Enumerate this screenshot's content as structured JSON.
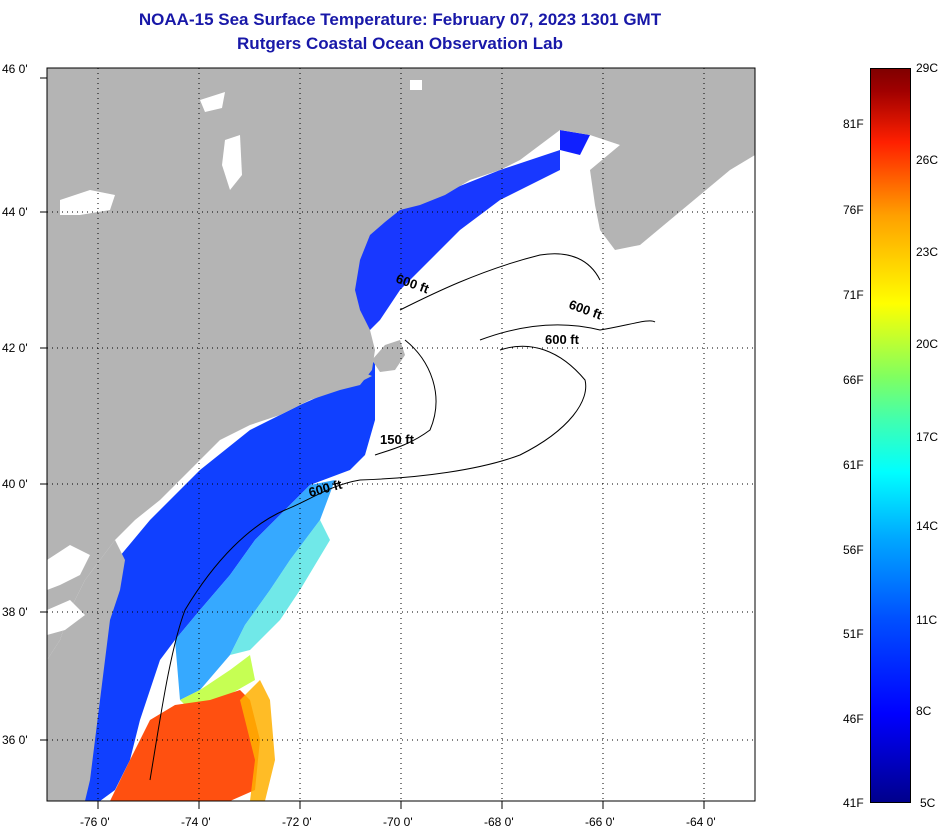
{
  "header": {
    "title": "NOAA-15 Sea Surface Temperature:  February 07, 2023 1301 GMT",
    "subtitle": "Rutgers Coastal Ocean Observation Lab"
  },
  "map": {
    "lat_labels": [
      "46 0'",
      "44 0'",
      "42 0'",
      "40 0'",
      "38 0'",
      "36 0'"
    ],
    "lon_labels": [
      "-76 0'",
      "-74 0'",
      "-72 0'",
      "-70 0'",
      "-68 0'",
      "-66 0'",
      "-64 0'"
    ],
    "lat_range": [
      35,
      46
    ],
    "lon_range": [
      -77,
      -63
    ],
    "contour_labels": [
      "600 ft",
      "600 ft",
      "600 ft",
      "150 ft",
      "600 ft"
    ],
    "colors": {
      "land": "#b4b4b4",
      "no_data": "#ffffff",
      "grid": "#000000"
    }
  },
  "colorbar": {
    "celsius_labels": [
      "29C",
      "26C",
      "23C",
      "20C",
      "17C",
      "14C",
      "11C",
      "8C",
      "5C"
    ],
    "fahrenheit_labels": [
      "81F",
      "76F",
      "71F",
      "66F",
      "61F",
      "56F",
      "51F",
      "46F",
      "41F"
    ]
  }
}
